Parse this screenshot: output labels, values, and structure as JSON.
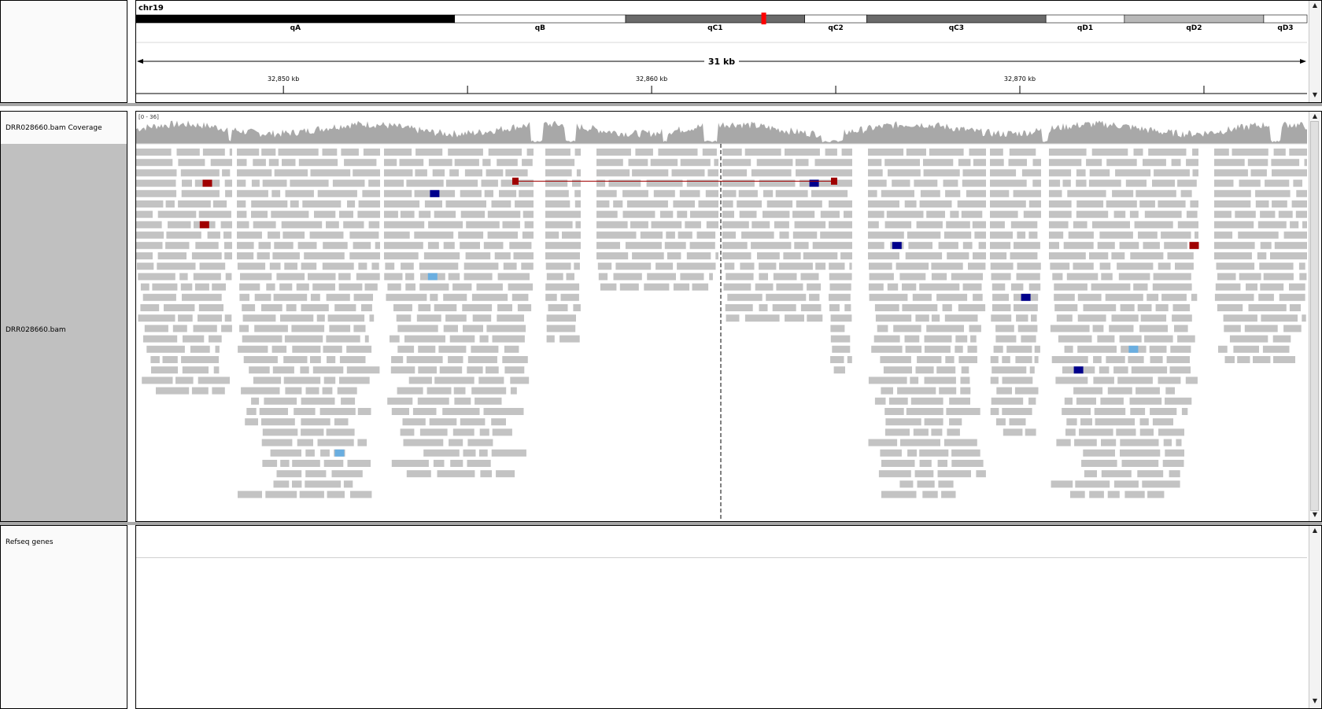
{
  "header": {
    "chromosome": "chr19",
    "bands": [
      {
        "label": "qA",
        "start": 0.0,
        "end": 0.272,
        "stain": "#000000"
      },
      {
        "label": "qB",
        "start": 0.272,
        "end": 0.418,
        "stain": "#ffffff"
      },
      {
        "label": "qC1",
        "start": 0.418,
        "end": 0.571,
        "stain": "#6a6a6a"
      },
      {
        "label": "qC2",
        "start": 0.571,
        "end": 0.624,
        "stain": "#ffffff"
      },
      {
        "label": "qC3",
        "start": 0.624,
        "end": 0.777,
        "stain": "#6a6a6a"
      },
      {
        "label": "qD1",
        "start": 0.777,
        "end": 0.844,
        "stain": "#ffffff"
      },
      {
        "label": "qD2",
        "start": 0.844,
        "end": 0.963,
        "stain": "#b8b8b8"
      },
      {
        "label": "qD3",
        "start": 0.963,
        "end": 1.0,
        "stain": "#ffffff"
      }
    ],
    "current_view_marker_fraction": 0.536,
    "span_label": "31 kb",
    "ruler_ticks": [
      {
        "label": "32,850 kb",
        "kb": 32850
      },
      {
        "label": "",
        "kb": 32855
      },
      {
        "label": "32,860 kb",
        "kb": 32860
      },
      {
        "label": "",
        "kb": 32865
      },
      {
        "label": "32,870 kb",
        "kb": 32870
      },
      {
        "label": "",
        "kb": 32875
      }
    ],
    "view_start_kb": 32846.0,
    "view_end_kb": 32877.8
  },
  "tracks": {
    "coverage_name": "DRR028660.bam Coverage",
    "coverage_range": "[0 - 36]",
    "alignment_name": "DRR028660.bam",
    "genes_name": "Refseq genes"
  },
  "colors": {
    "read_gray": "#c3c3c3",
    "coverage_gray": "#a8a8a8",
    "selected_track_bg": "#c0c0c0",
    "insert_red": "#a00000",
    "inversion_blue": "#00008c",
    "light_blue": "#6aaee0",
    "center_line": "#000000"
  },
  "icons": {
    "scroll_up": "triangle-up",
    "scroll_down": "triangle-down"
  }
}
